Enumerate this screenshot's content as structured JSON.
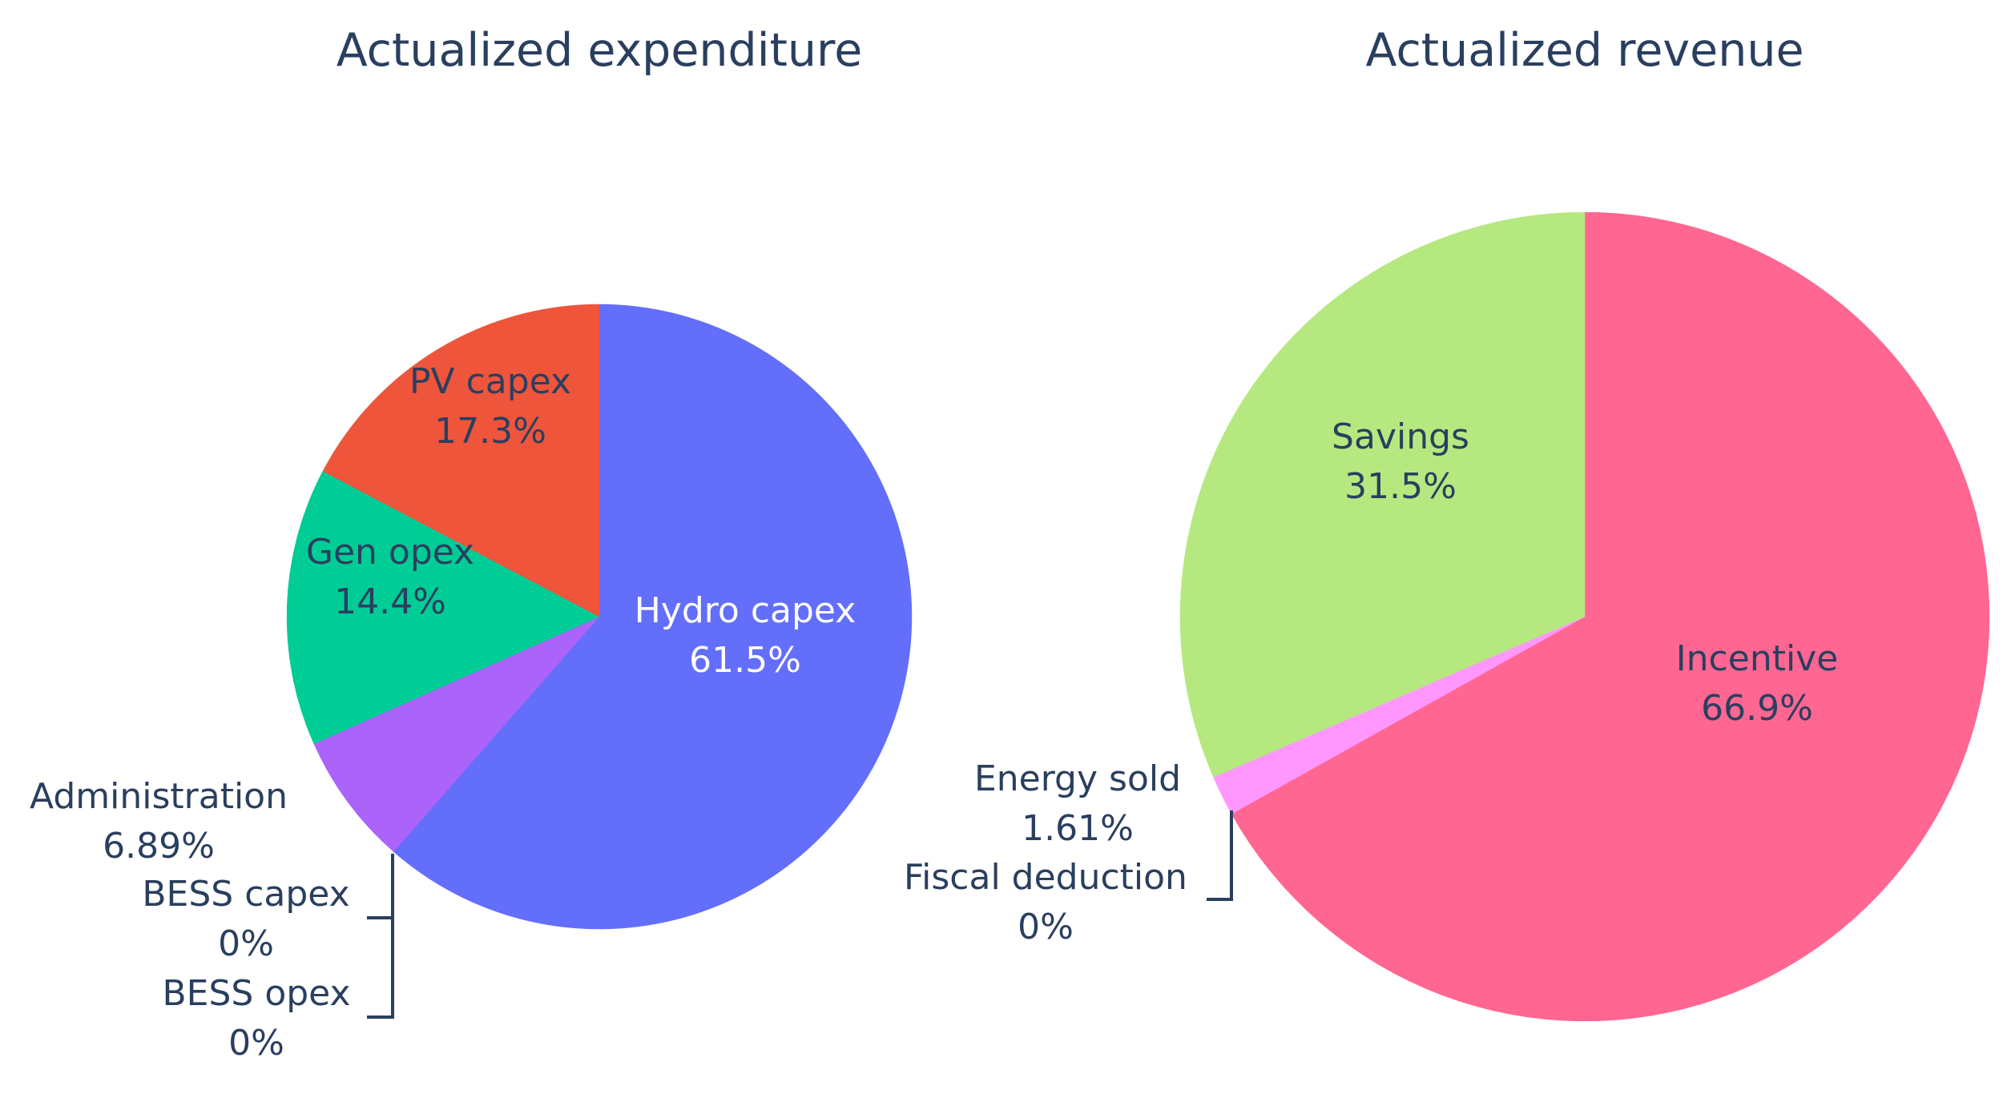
{
  "chart_data": [
    {
      "type": "pie",
      "title": "Actualized expenditure",
      "slices": [
        {
          "label": "Hydro capex",
          "value": 61.5,
          "text": "61.5%",
          "color": "#636efa",
          "label_inside": true,
          "label_color": "#ffffff"
        },
        {
          "label": "BESS capex",
          "value": 0,
          "text": "0%",
          "color": "#ef553b",
          "label_inside": false
        },
        {
          "label": "BESS opex",
          "value": 0,
          "text": "0%",
          "color": "#00cc96",
          "label_inside": false
        },
        {
          "label": "Administration",
          "value": 6.89,
          "text": "6.89%",
          "color": "#ab63fa",
          "label_inside": false
        },
        {
          "label": "Gen opex",
          "value": 14.4,
          "text": "14.4%",
          "color": "#00cc96",
          "label_inside": true,
          "label_color": "#2a3f5f"
        },
        {
          "label": "PV capex",
          "value": 17.3,
          "text": "17.3%",
          "color": "#ef553b",
          "label_inside": true,
          "label_color": "#2a3f5f"
        }
      ]
    },
    {
      "type": "pie",
      "title": "Actualized revenue",
      "slices": [
        {
          "label": "Incentive",
          "value": 66.9,
          "text": "66.9%",
          "color": "#ff6692",
          "label_inside": true,
          "label_color": "#2a3f5f"
        },
        {
          "label": "Fiscal deduction",
          "value": 0,
          "text": "0%",
          "color": "#19d3f3",
          "label_inside": false
        },
        {
          "label": "Energy sold",
          "value": 1.61,
          "text": "1.61%",
          "color": "#ff97ff",
          "label_inside": false
        },
        {
          "label": "Savings",
          "value": 31.5,
          "text": "31.5%",
          "color": "#b6e880",
          "label_inside": true,
          "label_color": "#2a3f5f"
        }
      ]
    }
  ],
  "colors": {
    "title_text": "#2a3f5f",
    "outside_label_text": "#2a3f5f",
    "leader_line": "#2a3f5f",
    "background": "#ffffff"
  }
}
